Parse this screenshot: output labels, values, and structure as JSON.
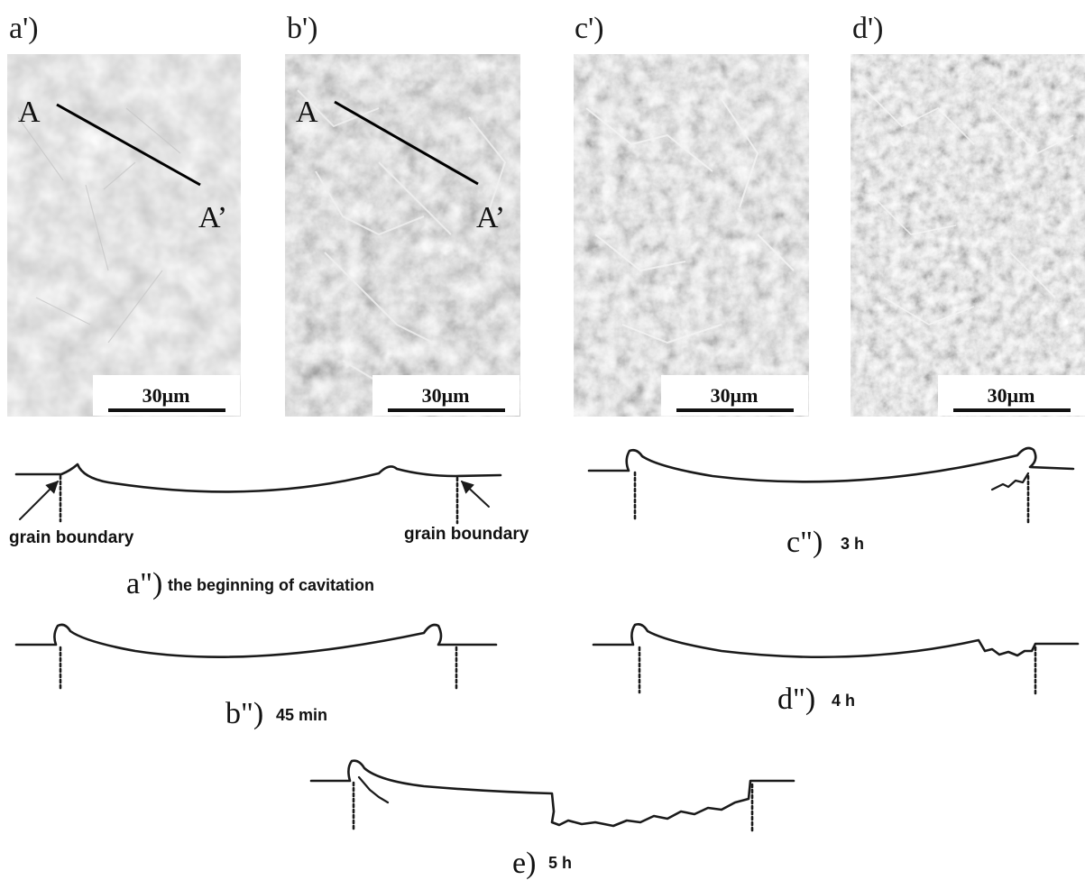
{
  "micrographs": [
    {
      "id": "a",
      "label": "a')",
      "line_start_label": "A",
      "line_end_label": "A’",
      "scale": "30μm"
    },
    {
      "id": "b",
      "label": "b')",
      "line_start_label": "A",
      "line_end_label": "A’",
      "scale": "30μm"
    },
    {
      "id": "c",
      "label": "c')",
      "scale": "30μm"
    },
    {
      "id": "d",
      "label": "d')",
      "scale": "30μm"
    }
  ],
  "profiles": [
    {
      "id": "a",
      "label": "a\")",
      "caption": "the beginning of cavitation",
      "gb_left": "grain boundary",
      "gb_right": "grain boundary"
    },
    {
      "id": "b",
      "label": "b\")",
      "caption": "45 min"
    },
    {
      "id": "c",
      "label": "c\")",
      "caption": "3 h"
    },
    {
      "id": "d",
      "label": "d\")",
      "caption": "4 h"
    },
    {
      "id": "e",
      "label": "e)",
      "caption": "5 h"
    }
  ],
  "colors": {
    "line": "#1a1a1a",
    "sem_base": "#8a8a8a",
    "sem_bright": "#f2f2f2"
  }
}
